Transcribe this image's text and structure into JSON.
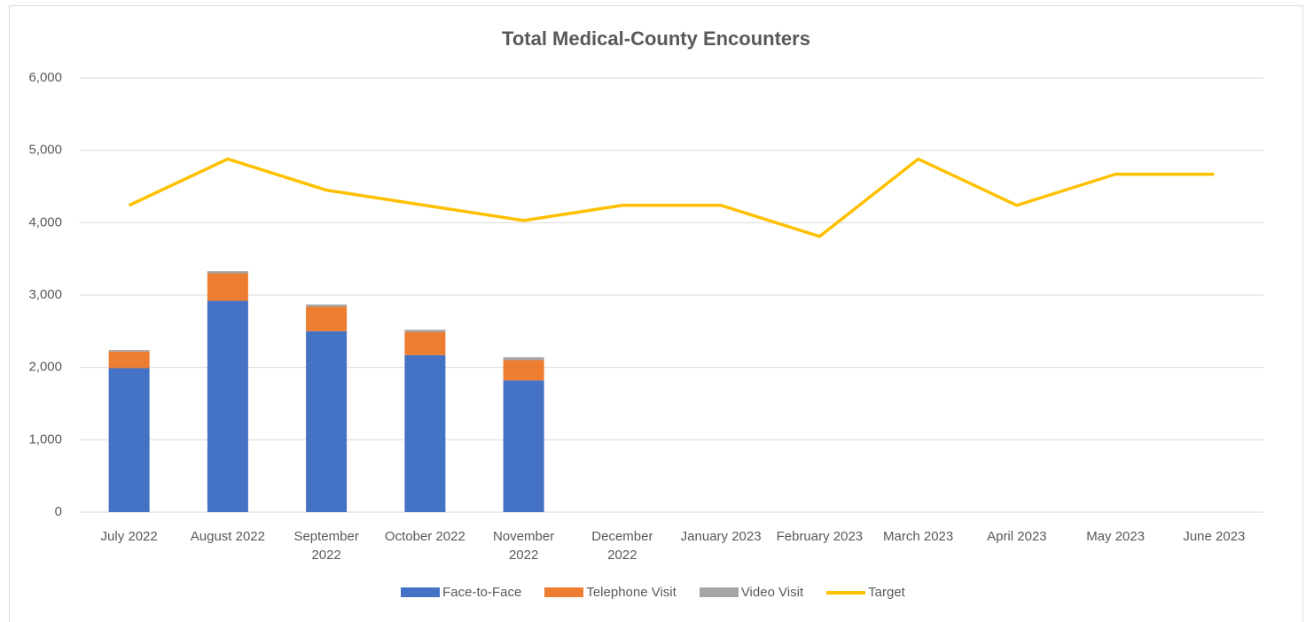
{
  "chart_data": {
    "type": "bar",
    "stacked": true,
    "title": "Total Medical-County Encounters",
    "categories": [
      "July 2022",
      "August 2022",
      "September 2022",
      "October 2022",
      "November 2022",
      "December 2022",
      "January 2023",
      "February 2023",
      "March 2023",
      "April 2023",
      "May 2023",
      "June 2023"
    ],
    "series": [
      {
        "name": "Face-to-Face",
        "type": "bar",
        "color": "#4472c4",
        "values": [
          1990,
          2920,
          2500,
          2170,
          1820,
          null,
          null,
          null,
          null,
          null,
          null,
          null
        ]
      },
      {
        "name": "Telephone Visit",
        "type": "bar",
        "color": "#ed7d31",
        "values": [
          230,
          380,
          340,
          320,
          280,
          null,
          null,
          null,
          null,
          null,
          null,
          null
        ]
      },
      {
        "name": "Video Visit",
        "type": "bar",
        "color": "#a5a5a5",
        "values": [
          20,
          30,
          30,
          30,
          40,
          null,
          null,
          null,
          null,
          null,
          null,
          null
        ]
      },
      {
        "name": "Target",
        "type": "line",
        "color": "#ffc000",
        "values": [
          4240,
          4880,
          4450,
          4240,
          4030,
          4240,
          4240,
          3810,
          4880,
          4240,
          4670,
          4670
        ]
      }
    ],
    "ylim": [
      0,
      6000
    ],
    "yticks": [
      0,
      {
        "value": 1000,
        "label": "1,000"
      },
      {
        "value": 2000,
        "label": "2,000"
      },
      {
        "value": 3000,
        "label": "3,000"
      },
      {
        "value": 4000,
        "label": "4,000"
      },
      {
        "value": 5000,
        "label": "5,000"
      },
      {
        "value": 6000,
        "label": "6,000"
      }
    ],
    "grid": true,
    "legend": "bottom"
  }
}
